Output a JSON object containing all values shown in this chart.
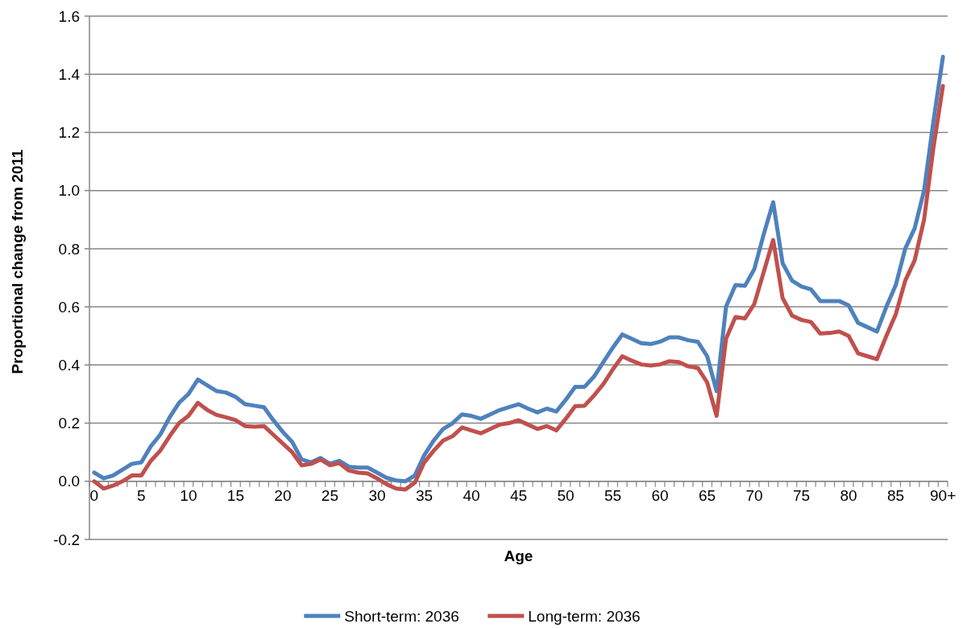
{
  "chart_data": {
    "type": "line",
    "xlabel": "Age",
    "ylabel": "Proportional change from 2011",
    "categories": [
      "0",
      null,
      null,
      null,
      null,
      "5",
      null,
      null,
      null,
      null,
      "10",
      null,
      null,
      null,
      null,
      "15",
      null,
      null,
      null,
      null,
      "20",
      null,
      null,
      null,
      null,
      "25",
      null,
      null,
      null,
      null,
      "30",
      null,
      null,
      null,
      null,
      "35",
      null,
      null,
      null,
      null,
      "40",
      null,
      null,
      null,
      null,
      "45",
      null,
      null,
      null,
      null,
      "50",
      null,
      null,
      null,
      null,
      "55",
      null,
      null,
      null,
      null,
      "60",
      null,
      null,
      null,
      null,
      "65",
      null,
      null,
      null,
      null,
      "70",
      null,
      null,
      null,
      null,
      "75",
      null,
      null,
      null,
      null,
      "80",
      null,
      null,
      null,
      null,
      "85",
      null,
      null,
      null,
      null,
      "90+"
    ],
    "series": [
      {
        "name": "Short-term: 2036",
        "color": "#4f81bd",
        "values": [
          0.03,
          0.01,
          0.02,
          0.04,
          0.06,
          0.065,
          0.12,
          0.16,
          0.22,
          0.27,
          0.3,
          0.35,
          0.33,
          0.31,
          0.305,
          0.29,
          0.265,
          0.26,
          0.255,
          0.21,
          0.17,
          0.135,
          0.075,
          0.065,
          0.08,
          0.06,
          0.07,
          0.05,
          0.047,
          0.047,
          0.03,
          0.012,
          0.003,
          0.0,
          0.02,
          0.09,
          0.14,
          0.18,
          0.2,
          0.23,
          0.225,
          0.215,
          0.23,
          0.245,
          0.255,
          0.265,
          0.25,
          0.237,
          0.25,
          0.24,
          0.28,
          0.325,
          0.325,
          0.36,
          0.41,
          0.46,
          0.505,
          0.49,
          0.475,
          0.472,
          0.48,
          0.495,
          0.495,
          0.485,
          0.48,
          0.43,
          0.31,
          0.6,
          0.675,
          0.672,
          0.73,
          0.85,
          0.96,
          0.75,
          0.69,
          0.67,
          0.66,
          0.62,
          0.62,
          0.62,
          0.605,
          0.545,
          0.53,
          0.515,
          0.6,
          0.675,
          0.8,
          0.87,
          1.0,
          1.24,
          1.46
        ]
      },
      {
        "name": "Long-term: 2036",
        "color": "#c0504d",
        "values": [
          0.0,
          -0.025,
          -0.015,
          0.0,
          0.02,
          0.02,
          0.07,
          0.105,
          0.155,
          0.2,
          0.225,
          0.27,
          0.245,
          0.228,
          0.22,
          0.21,
          0.19,
          0.188,
          0.19,
          0.16,
          0.13,
          0.1,
          0.055,
          0.06,
          0.075,
          0.055,
          0.062,
          0.037,
          0.03,
          0.027,
          0.01,
          -0.01,
          -0.025,
          -0.028,
          -0.005,
          0.065,
          0.105,
          0.14,
          0.155,
          0.185,
          0.175,
          0.165,
          0.18,
          0.195,
          0.2,
          0.21,
          0.195,
          0.18,
          0.19,
          0.175,
          0.215,
          0.258,
          0.26,
          0.295,
          0.335,
          0.385,
          0.43,
          0.415,
          0.402,
          0.398,
          0.402,
          0.413,
          0.41,
          0.395,
          0.39,
          0.34,
          0.225,
          0.49,
          0.565,
          0.56,
          0.61,
          0.72,
          0.83,
          0.63,
          0.57,
          0.555,
          0.548,
          0.508,
          0.51,
          0.515,
          0.5,
          0.44,
          0.43,
          0.42,
          0.5,
          0.575,
          0.69,
          0.76,
          0.9,
          1.15,
          1.36
        ]
      }
    ],
    "ylim": [
      -0.2,
      1.6
    ],
    "yticks": [
      {
        "value": -0.2,
        "label": "-0.2"
      },
      {
        "value": 0,
        "label": "0.0"
      },
      {
        "value": 0.2,
        "label": "0.2"
      },
      {
        "value": 0.4,
        "label": "0.4"
      },
      {
        "value": 0.6,
        "label": "0.6"
      },
      {
        "value": 0.8,
        "label": "0.8"
      },
      {
        "value": 1,
        "label": "1.0"
      },
      {
        "value": 1.2,
        "label": "1.2"
      },
      {
        "value": 1.4,
        "label": "1.4"
      },
      {
        "value": 1.6,
        "label": "1.6"
      }
    ],
    "grid": "y",
    "legend": "bottom"
  }
}
